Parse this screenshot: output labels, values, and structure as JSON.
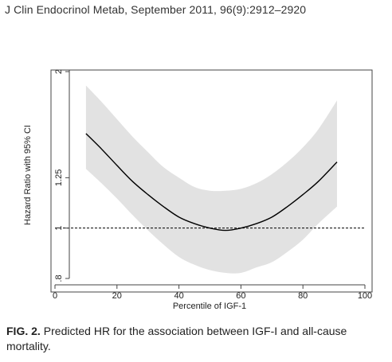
{
  "citation": "J Clin Endocrinol Metab, September 2011, 96(9):2912–2920",
  "caption": {
    "label": "FIG. 2.",
    "text": "Predicted HR for the association between IGF-I and all-cause mortality."
  },
  "colors": {
    "ci_band": "#e2e2e2",
    "line": "#000000",
    "frame": "#444444",
    "ref_line": "#000000"
  },
  "chart_data": {
    "type": "line",
    "title": "",
    "xlabel": "Percentile of IGF-1",
    "ylabel": "Hazard Ratio with 95% CI",
    "xlim": [
      0,
      100
    ],
    "ylim": [
      0.8,
      2
    ],
    "y_scale": "log",
    "grid": false,
    "x_ticks": [
      0,
      20,
      40,
      60,
      80,
      100
    ],
    "x_tick_labels": [
      "0",
      "20",
      "40",
      "60",
      "80",
      "100"
    ],
    "y_ticks": [
      0.8,
      1,
      1.25,
      2
    ],
    "y_tick_labels": [
      ".8",
      "1",
      "1.25",
      "2"
    ],
    "reference_line": {
      "y": 1,
      "style": "dashed"
    },
    "series": [
      {
        "x": [
          10,
          15,
          20,
          25,
          30,
          35,
          40,
          45,
          50,
          55,
          60,
          65,
          70,
          75,
          80,
          85,
          91
        ],
        "y": [
          1.52,
          1.42,
          1.32,
          1.23,
          1.16,
          1.1,
          1.05,
          1.02,
          1.0,
          0.99,
          1.0,
          1.02,
          1.05,
          1.1,
          1.16,
          1.23,
          1.34
        ],
        "lower": [
          1.3,
          1.22,
          1.14,
          1.06,
          0.99,
          0.93,
          0.88,
          0.85,
          0.83,
          0.82,
          0.82,
          0.84,
          0.86,
          0.9,
          0.95,
          1.02,
          1.1
        ],
        "upper": [
          1.88,
          1.75,
          1.62,
          1.5,
          1.4,
          1.31,
          1.25,
          1.2,
          1.18,
          1.18,
          1.19,
          1.22,
          1.27,
          1.34,
          1.43,
          1.55,
          1.76
        ]
      }
    ]
  }
}
